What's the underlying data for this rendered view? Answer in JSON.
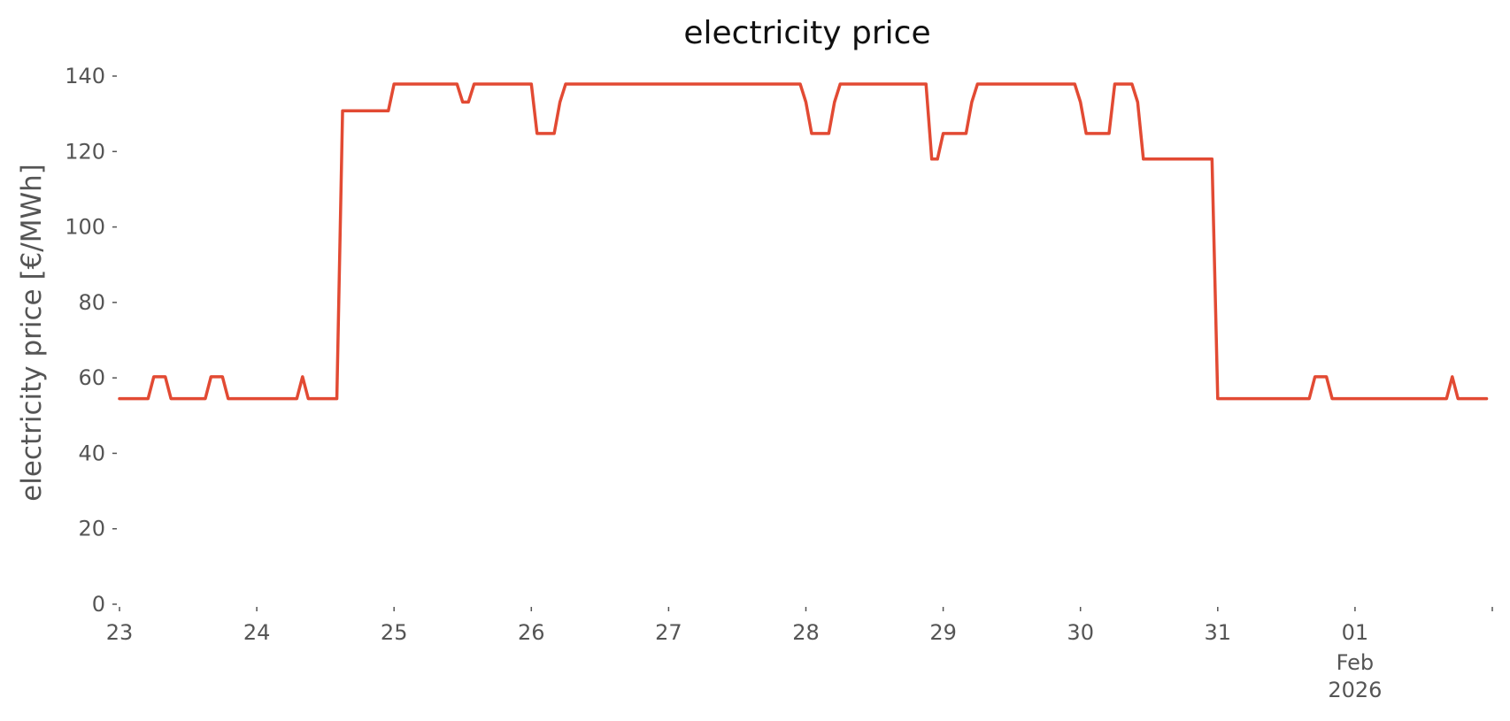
{
  "chart_data": {
    "type": "line",
    "title": "electricity price",
    "xlabel": "",
    "ylabel": "electricity price [€/MWh]",
    "grid": false,
    "legend": "none",
    "colors": {
      "line": "#E24A33",
      "text": "#555555",
      "title": "#111111"
    },
    "xlim": [
      "2026-01-23 00:00",
      "2026-02-01 23:00"
    ],
    "ylim": [
      0,
      140
    ],
    "yticks": [
      0,
      20,
      40,
      60,
      80,
      100,
      120,
      140
    ],
    "ytick_labels": [
      "0",
      "20",
      "40",
      "60",
      "80",
      "100",
      "120",
      "140"
    ],
    "xticks": [
      {
        "x": "2026-01-23 00:00",
        "label": "23"
      },
      {
        "x": "2026-01-24 00:00",
        "label": "24"
      },
      {
        "x": "2026-01-25 00:00",
        "label": "25"
      },
      {
        "x": "2026-01-26 00:00",
        "label": "26"
      },
      {
        "x": "2026-01-27 00:00",
        "label": "27"
      },
      {
        "x": "2026-01-28 00:00",
        "label": "28"
      },
      {
        "x": "2026-01-29 00:00",
        "label": "29"
      },
      {
        "x": "2026-01-30 00:00",
        "label": "30"
      },
      {
        "x": "2026-01-31 00:00",
        "label": "31"
      },
      {
        "x": "2026-02-01 00:00",
        "label": "01",
        "sublabels": [
          "Feb",
          "2026"
        ]
      },
      {
        "x": "2026-02-02 00:00",
        "label": ""
      }
    ],
    "series": [
      {
        "color": "#E24A33",
        "points": [
          [
            "2026-01-23 00:00",
            54.5
          ],
          [
            "2026-01-23 05:00",
            54.5
          ],
          [
            "2026-01-23 06:00",
            60.3
          ],
          [
            "2026-01-23 08:00",
            60.3
          ],
          [
            "2026-01-23 09:00",
            54.5
          ],
          [
            "2026-01-23 15:00",
            54.5
          ],
          [
            "2026-01-23 16:00",
            60.3
          ],
          [
            "2026-01-23 18:00",
            60.3
          ],
          [
            "2026-01-23 19:00",
            54.5
          ],
          [
            "2026-01-24 07:00",
            54.5
          ],
          [
            "2026-01-24 08:00",
            60.3
          ],
          [
            "2026-01-24 09:00",
            54.5
          ],
          [
            "2026-01-24 14:00",
            54.5
          ],
          [
            "2026-01-24 15:00",
            130.8
          ],
          [
            "2026-01-24 23:00",
            130.8
          ],
          [
            "2026-01-25 00:00",
            137.9
          ],
          [
            "2026-01-25 11:00",
            137.9
          ],
          [
            "2026-01-25 12:00",
            133.1
          ],
          [
            "2026-01-25 13:00",
            133.1
          ],
          [
            "2026-01-25 14:00",
            137.9
          ],
          [
            "2026-01-26 00:00",
            137.9
          ],
          [
            "2026-01-26 01:00",
            124.8
          ],
          [
            "2026-01-26 04:00",
            124.8
          ],
          [
            "2026-01-26 05:00",
            133.1
          ],
          [
            "2026-01-26 06:00",
            137.9
          ],
          [
            "2026-01-27 23:00",
            137.9
          ],
          [
            "2026-01-28 00:00",
            133.1
          ],
          [
            "2026-01-28 01:00",
            124.8
          ],
          [
            "2026-01-28 04:00",
            124.8
          ],
          [
            "2026-01-28 05:00",
            133.1
          ],
          [
            "2026-01-28 06:00",
            137.9
          ],
          [
            "2026-01-28 21:00",
            137.9
          ],
          [
            "2026-01-28 22:00",
            118.0
          ],
          [
            "2026-01-28 23:00",
            118.0
          ],
          [
            "2026-01-29 00:00",
            124.8
          ],
          [
            "2026-01-29 04:00",
            124.8
          ],
          [
            "2026-01-29 05:00",
            133.1
          ],
          [
            "2026-01-29 06:00",
            137.9
          ],
          [
            "2026-01-29 23:00",
            137.9
          ],
          [
            "2026-01-30 00:00",
            133.1
          ],
          [
            "2026-01-30 01:00",
            124.8
          ],
          [
            "2026-01-30 05:00",
            124.8
          ],
          [
            "2026-01-30 06:00",
            137.9
          ],
          [
            "2026-01-30 09:00",
            137.9
          ],
          [
            "2026-01-30 10:00",
            133.1
          ],
          [
            "2026-01-30 11:00",
            118.0
          ],
          [
            "2026-01-30 23:00",
            118.0
          ],
          [
            "2026-01-31 00:00",
            54.5
          ],
          [
            "2026-01-31 16:00",
            54.5
          ],
          [
            "2026-01-31 17:00",
            60.3
          ],
          [
            "2026-01-31 19:00",
            60.3
          ],
          [
            "2026-01-31 20:00",
            54.5
          ],
          [
            "2026-02-01 16:00",
            54.5
          ],
          [
            "2026-02-01 17:00",
            60.3
          ],
          [
            "2026-02-01 18:00",
            54.5
          ],
          [
            "2026-02-01 23:00",
            54.5
          ]
        ]
      }
    ]
  }
}
